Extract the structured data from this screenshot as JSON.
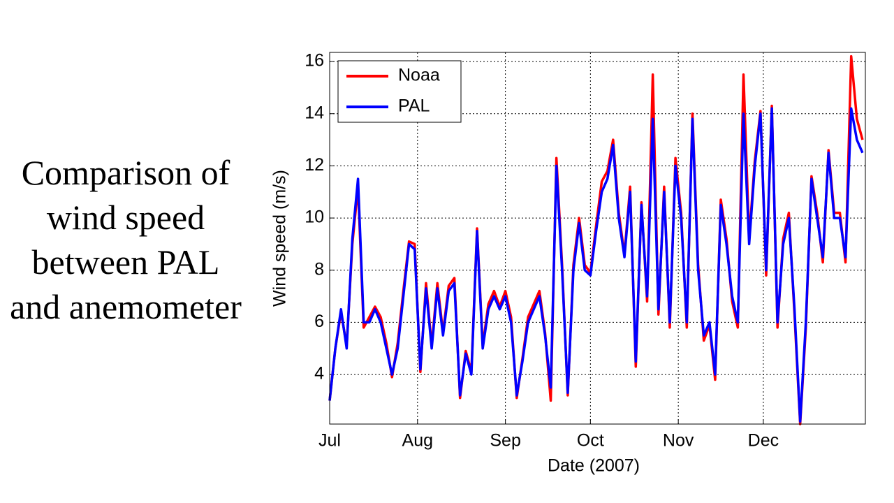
{
  "slide_title": "Comparison of wind speed between PAL and anemometer",
  "chart_data": {
    "type": "line",
    "xlabel": "Date (2007)",
    "ylabel": "Wind speed (m/s)",
    "x": [
      0,
      2,
      4,
      6,
      8,
      10,
      12,
      14,
      16,
      18,
      20,
      22,
      24,
      26,
      28,
      30,
      32,
      34,
      36,
      38,
      40,
      42,
      44,
      46,
      48,
      50,
      52,
      54,
      56,
      58,
      60,
      62,
      64,
      66,
      68,
      70,
      72,
      74,
      76,
      78,
      80,
      82,
      84,
      86,
      88,
      90,
      92,
      94,
      96,
      98,
      100,
      102,
      104,
      106,
      108,
      110,
      112,
      114,
      116,
      118,
      120,
      122,
      124,
      126,
      128,
      130,
      132,
      134,
      136,
      138,
      140,
      142,
      144,
      146,
      148,
      150,
      152,
      154,
      156,
      158,
      160,
      162,
      164,
      166,
      168,
      170,
      172,
      174,
      176,
      178,
      180,
      182,
      184,
      186,
      188
    ],
    "series": [
      {
        "name": "Noaa",
        "color": "#ff0000",
        "values": [
          3,
          5,
          6.4,
          5.1,
          9,
          11.2,
          5.8,
          6.2,
          6.6,
          6.2,
          5.2,
          3.9,
          5.2,
          7.2,
          9.1,
          9,
          4.1,
          7.5,
          5.1,
          7.5,
          5.6,
          7.4,
          7.7,
          3.1,
          4.9,
          4.1,
          9.6,
          5.1,
          6.7,
          7.2,
          6.6,
          7.2,
          6.2,
          3.1,
          4.6,
          6.2,
          6.7,
          7.2,
          5.6,
          3,
          12.3,
          8.2,
          3.2,
          8.2,
          10,
          8.2,
          7.9,
          9.7,
          11.4,
          11.8,
          13,
          10.2,
          8.6,
          11.2,
          4.3,
          10.6,
          6.8,
          15.5,
          6.3,
          11.2,
          5.8,
          12.3,
          10.2,
          5.8,
          14,
          8.2,
          5.3,
          5.9,
          3.8,
          10.7,
          9.2,
          6.8,
          5.8,
          15.5,
          9.2,
          12.2,
          14.1,
          7.8,
          14.3,
          5.8,
          9.2,
          10.2,
          6.3,
          2.1,
          5.8,
          11.6,
          10.2,
          8.3,
          12.6,
          10.2,
          10.2,
          8.3,
          16.2,
          13.8,
          13
        ]
      },
      {
        "name": "PAL",
        "color": "#0000ff",
        "values": [
          3,
          5,
          6.5,
          5,
          9.2,
          11.5,
          6,
          6,
          6.5,
          6,
          5,
          4,
          5,
          7,
          9,
          8.8,
          4.2,
          7.3,
          5,
          7.3,
          5.5,
          7.2,
          7.5,
          3.2,
          4.8,
          4,
          9.5,
          5,
          6.5,
          7,
          6.5,
          7,
          6,
          3.2,
          4.5,
          6,
          6.5,
          7,
          5.5,
          3.5,
          12,
          8,
          3.3,
          8,
          9.8,
          8,
          7.8,
          9.5,
          11,
          11.5,
          12.8,
          10,
          8.5,
          11,
          4.5,
          10.5,
          7,
          13.8,
          6.5,
          11,
          6,
          12,
          10,
          6,
          13.8,
          8,
          5.5,
          6,
          4,
          10.5,
          9,
          7,
          6,
          14,
          9,
          12,
          14,
          8,
          14.2,
          6,
          9,
          10,
          6.5,
          2.2,
          6,
          11.5,
          10,
          8.5,
          12.5,
          10,
          10,
          8.5,
          14.2,
          13,
          12.5
        ]
      }
    ],
    "xlim": [
      0,
      189
    ],
    "xticks": [
      {
        "value": 0,
        "label": "Jul"
      },
      {
        "value": 31,
        "label": "Aug"
      },
      {
        "value": 62,
        "label": "Sep"
      },
      {
        "value": 92,
        "label": "Oct"
      },
      {
        "value": 123,
        "label": "Nov"
      },
      {
        "value": 153,
        "label": "Dec"
      }
    ],
    "ylim": [
      2.1,
      16.35
    ],
    "yticks": [
      4,
      6,
      8,
      10,
      12,
      14,
      16
    ],
    "grid": true,
    "legend": "upper left"
  }
}
